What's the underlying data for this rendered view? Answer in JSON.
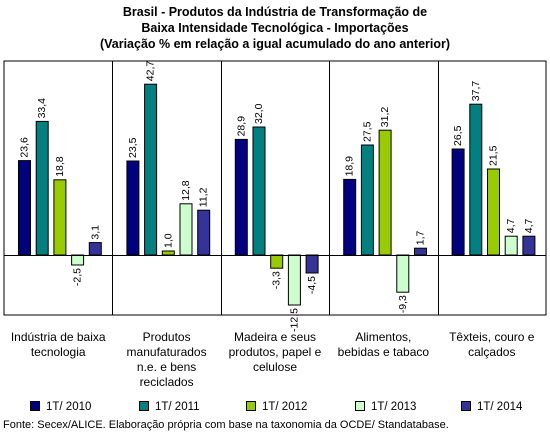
{
  "title_lines": [
    "Brasil - Produtos da Indústria de Transformação de",
    "Baixa Intensidade Tecnológica - Importações",
    "(Variação % em relação a igual acumulado do ano anterior)"
  ],
  "source": "Fonte: Secex/ALICE. Elaboração própria com base na taxonomia da OCDE/ Standatabase.",
  "chart_data": {
    "type": "bar",
    "title": "Brasil - Produtos da Indústria de Transformação de Baixa Intensidade Tecnológica - Importações (Variação % em relação a igual acumulado do ano anterior)",
    "categories": [
      "Indústria de baixa tecnologia",
      "Produtos manufaturados n.e. e bens reciclados",
      "Madeira e seus produtos, papel e celulose",
      "Alimentos, bebidas e tabaco",
      "Têxteis, couro e calçados"
    ],
    "category_label_lines": [
      [
        "Indústria de baixa",
        "tecnologia"
      ],
      [
        "Produtos",
        "manufaturados",
        "n.e. e bens",
        "reciclados"
      ],
      [
        "Madeira e seus",
        "produtos, papel e",
        "celulose"
      ],
      [
        "Alimentos,",
        "bebidas e tabaco"
      ],
      [
        "Têxteis, couro e",
        "calçados"
      ]
    ],
    "series": [
      {
        "name": "1T/ 2010",
        "color": "#000080",
        "values": [
          23.6,
          23.5,
          28.9,
          18.9,
          26.5
        ],
        "labels": [
          "23,6",
          "23,5",
          "28,9",
          "18,9",
          "26,5"
        ]
      },
      {
        "name": "1T/ 2011",
        "color": "#008080",
        "values": [
          33.4,
          42.7,
          32.0,
          27.5,
          37.7
        ],
        "labels": [
          "33,4",
          "42,7",
          "32,0",
          "27,5",
          "37,7"
        ]
      },
      {
        "name": "1T/ 2012",
        "color": "#99CC00",
        "values": [
          18.8,
          1.0,
          -3.3,
          31.2,
          21.5
        ],
        "labels": [
          "18,8",
          "1,0",
          "-3,3",
          "31,2",
          "21,5"
        ]
      },
      {
        "name": "1T/ 2013",
        "color": "#CCFFCC",
        "values": [
          -2.5,
          12.8,
          -12.5,
          -9.3,
          4.7
        ],
        "labels": [
          "-2,5",
          "12,8",
          "-12,5",
          "-9,3",
          "4,7"
        ]
      },
      {
        "name": "1T/ 2014",
        "color": "#333399",
        "values": [
          3.1,
          11.2,
          -4.5,
          1.7,
          4.7
        ],
        "labels": [
          "3,1",
          "11,2",
          "-4,5",
          "1,7",
          "4,7"
        ]
      }
    ],
    "ylim": [
      -15,
      45
    ],
    "grid": false,
    "legend_position": "bottom"
  }
}
